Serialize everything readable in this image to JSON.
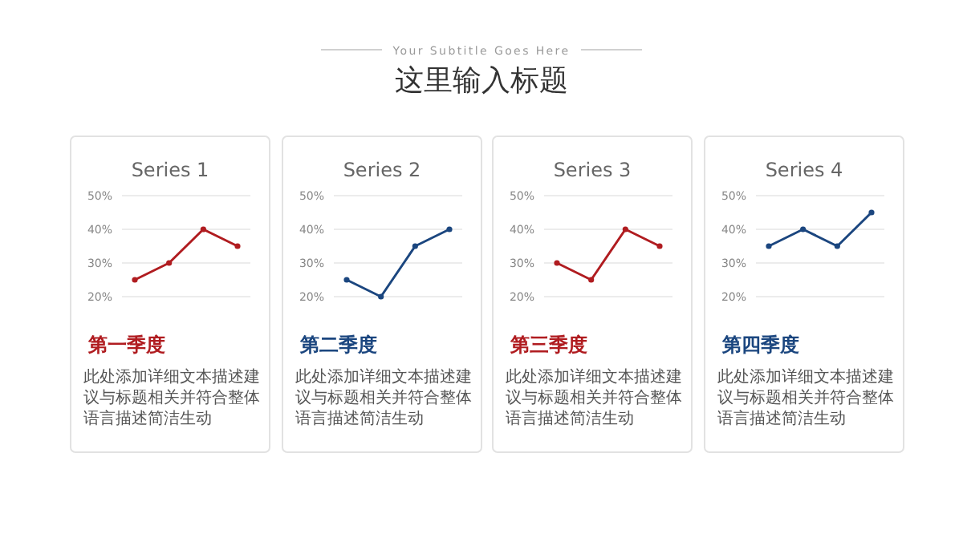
{
  "chart_data": [
    {
      "type": "other",
      "title": "这里输入标题",
      "subtitle": "Your Subtitle Goes Here"
    },
    {
      "type": "line",
      "title": "Series 1",
      "categories": [
        null,
        null,
        null,
        null
      ],
      "series": [
        {
          "color": "#b01c20",
          "values": [
            25,
            30,
            40,
            35
          ]
        }
      ],
      "ylim": [
        20,
        50
      ],
      "yticks": [
        {
          "value": 20,
          "label": "20%"
        },
        {
          "value": 30,
          "label": "30%"
        },
        {
          "value": 40,
          "label": "40%"
        },
        {
          "value": 50,
          "label": "50%"
        }
      ],
      "grid": "y",
      "marker": "circle",
      "tick_labels": "y",
      "annotations": [
        "第一季度",
        "此处添加详细文本描述建议与标题相关并符合整体语言描述简洁生动"
      ]
    },
    {
      "type": "line",
      "title": "Series 2",
      "categories": [
        null,
        null,
        null,
        null
      ],
      "series": [
        {
          "color": "#1b467f",
          "values": [
            25,
            20,
            35,
            40
          ]
        }
      ],
      "ylim": [
        20,
        50
      ],
      "yticks": [
        {
          "value": 20,
          "label": "20%"
        },
        {
          "value": 30,
          "label": "30%"
        },
        {
          "value": 40,
          "label": "40%"
        },
        {
          "value": 50,
          "label": "50%"
        }
      ],
      "grid": "y",
      "marker": "circle",
      "tick_labels": "y",
      "annotations": [
        "第二季度",
        "此处添加详细文本描述建议与标题相关并符合整体语言描述简洁生动"
      ]
    },
    {
      "type": "line",
      "title": "Series 3",
      "categories": [
        null,
        null,
        null,
        null
      ],
      "series": [
        {
          "color": "#b01c20",
          "values": [
            30,
            25,
            40,
            35
          ]
        }
      ],
      "ylim": [
        20,
        50
      ],
      "yticks": [
        {
          "value": 20,
          "label": "20%"
        },
        {
          "value": 30,
          "label": "30%"
        },
        {
          "value": 40,
          "label": "40%"
        },
        {
          "value": 50,
          "label": "50%"
        }
      ],
      "grid": "y",
      "marker": "circle",
      "tick_labels": "y",
      "annotations": [
        "第三季度",
        "此处添加详细文本描述建议与标题相关并符合整体语言描述简洁生动"
      ]
    },
    {
      "type": "line",
      "title": "Series 4",
      "categories": [
        null,
        null,
        null,
        null
      ],
      "series": [
        {
          "color": "#1b467f",
          "values": [
            35,
            40,
            35,
            45
          ]
        }
      ],
      "ylim": [
        20,
        50
      ],
      "yticks": [
        {
          "value": 20,
          "label": "20%"
        },
        {
          "value": 30,
          "label": "30%"
        },
        {
          "value": 40,
          "label": "40%"
        },
        {
          "value": 50,
          "label": "50%"
        }
      ],
      "grid": "y",
      "marker": "circle",
      "tick_labels": "y",
      "annotations": [
        "第四季度",
        "此处添加详细文本描述建议与标题相关并符合整体语言描述简洁生动"
      ]
    }
  ]
}
